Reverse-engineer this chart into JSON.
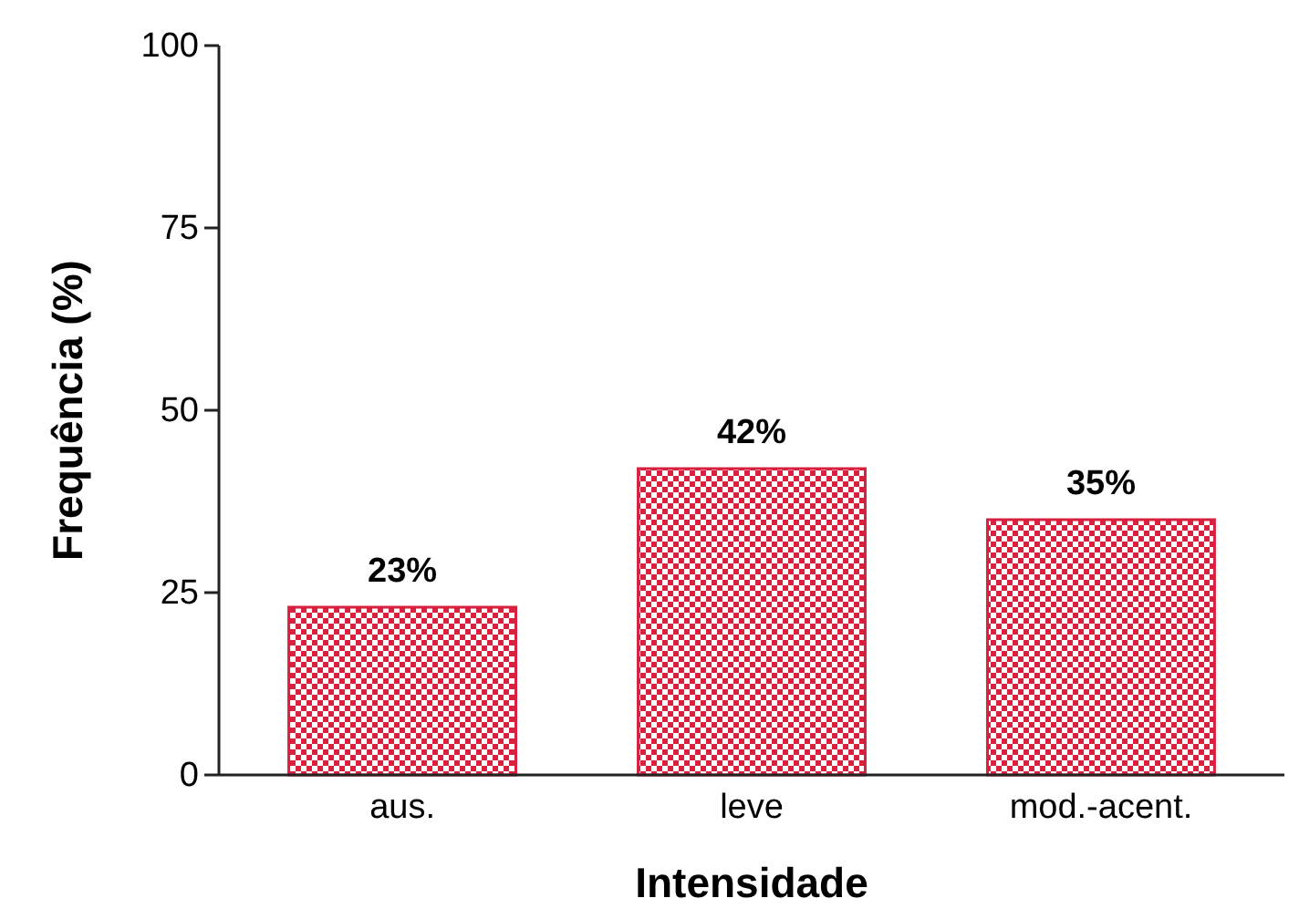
{
  "chart_data": {
    "type": "bar",
    "xlabel": "Intensidade",
    "ylabel": "Frequência (%)",
    "categories": [
      "aus.",
      "leve",
      "mod.-acent."
    ],
    "values": [
      23,
      42,
      35
    ],
    "color": "#d8213f",
    "value_labels": [
      "23%",
      "42%",
      "35%"
    ],
    "ylim": [
      0,
      100
    ],
    "yticks": [
      0,
      25,
      50,
      75,
      100
    ],
    "grid": false
  }
}
